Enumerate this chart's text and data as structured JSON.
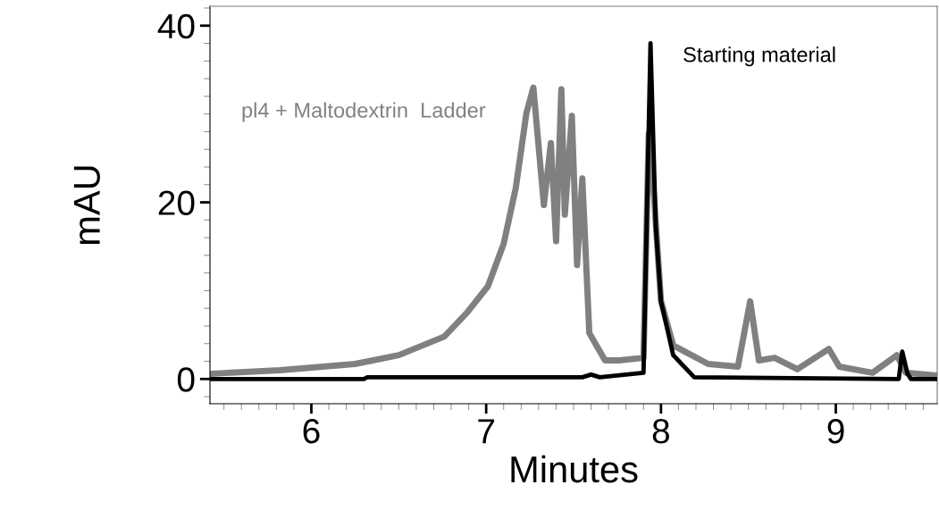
{
  "chart_data": {
    "type": "line",
    "xlabel": "Minutes",
    "ylabel": "mAU",
    "xlim": [
      5.42,
      9.58
    ],
    "xticks": [
      6,
      7,
      8,
      9
    ],
    "ylim": [
      -2.8,
      42.2
    ],
    "yticks": [
      0,
      20,
      40
    ],
    "grid": false,
    "legend": false,
    "marker": "none",
    "line_style": "solid",
    "series": [
      {
        "name": "pl4 + Maltodextrin  Ladder",
        "color": "#808080",
        "x": [
          5.43,
          5.82,
          6.25,
          6.5,
          6.76,
          6.89,
          7.01,
          7.1,
          7.17,
          7.23,
          7.27,
          7.33,
          7.37,
          7.4,
          7.43,
          7.45,
          7.49,
          7.52,
          7.55,
          7.59,
          7.68,
          7.76,
          7.9,
          7.93,
          7.96,
          8.0,
          8.07,
          8.27,
          8.44,
          8.51,
          8.56,
          8.65,
          8.78,
          8.96,
          9.02,
          9.21,
          9.35,
          9.4,
          9.57
        ],
        "values": [
          0.6,
          1.0,
          1.7,
          2.7,
          4.8,
          7.5,
          10.5,
          15.3,
          21.7,
          30.1,
          33,
          19.7,
          26.7,
          15.6,
          32.8,
          18.6,
          29.8,
          12.9,
          22.7,
          5.2,
          2.1,
          2.1,
          2.4,
          27.8,
          20.7,
          8.8,
          3.8,
          1.7,
          1.4,
          8.8,
          2.1,
          2.4,
          1.1,
          3.4,
          1.4,
          0.7,
          2.7,
          0.7,
          0.4
        ]
      },
      {
        "name": "Starting material",
        "color": "#000000",
        "x": [
          5.43,
          6.3,
          6.32,
          7.55,
          7.6,
          7.65,
          7.9,
          7.94,
          7.97,
          8.0,
          8.07,
          8.19,
          9.36,
          9.38,
          9.41,
          9.43,
          9.57
        ],
        "values": [
          0,
          0,
          0.2,
          0.2,
          0.5,
          0.2,
          0.7,
          38,
          17.3,
          8.8,
          2.7,
          0.2,
          0,
          3.1,
          0.6,
          0,
          0
        ]
      }
    ]
  }
}
